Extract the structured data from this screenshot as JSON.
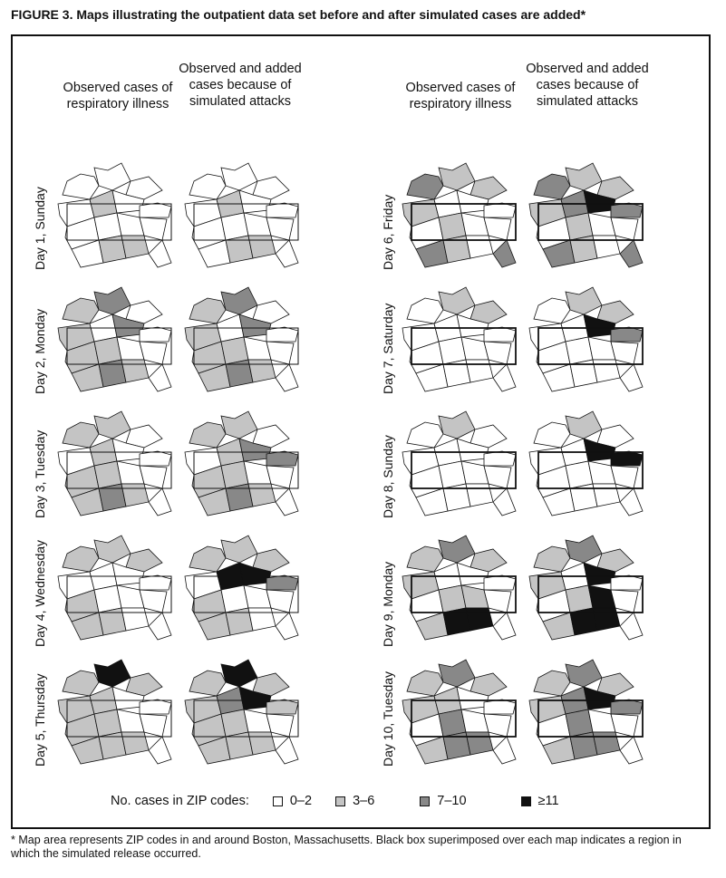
{
  "title": "FIGURE 3. Maps illustrating the outpatient data set before and after simulated cases are added*",
  "columns": {
    "observed": "Observed cases of respiratory illness",
    "added": "Observed and added cases because of simulated attacks"
  },
  "legend": {
    "label": "No. cases in ZIP codes:",
    "items": [
      {
        "label": "0–2",
        "color": "#ffffff"
      },
      {
        "label": "3–6",
        "color": "#c4c4c4"
      },
      {
        "label": "7–10",
        "color": "#888888"
      },
      {
        "label": "≥11",
        "color": "#111111"
      }
    ]
  },
  "footnote": "* Map area represents ZIP codes in and around Boston, Massachusetts. Black box superimposed over each map indicates a region in which the simulated release occurred.",
  "days": [
    {
      "label": "Day 1, Sunday",
      "observed": {
        "4": 1,
        "12": 1,
        "13": 1
      },
      "added": {
        "4": 1,
        "12": 1,
        "13": 1
      }
    },
    {
      "label": "Day 2, Monday",
      "observed": {
        "0": 2,
        "1": 1,
        "3": 1,
        "5": 2,
        "7": 1,
        "8": 1,
        "12": 2,
        "13": 1,
        "11": 1
      },
      "added": {
        "0": 2,
        "1": 1,
        "3": 1,
        "5": 2,
        "7": 1,
        "8": 1,
        "12": 2,
        "13": 1,
        "11": 1
      }
    },
    {
      "label": "Day 3, Tuesday",
      "observed": {
        "0": 1,
        "1": 1,
        "4": 1,
        "7": 1,
        "8": 1,
        "12": 2,
        "11": 1,
        "13": 1
      },
      "added": {
        "0": 1,
        "1": 1,
        "4": 1,
        "6": 2,
        "5": 2,
        "7": 1,
        "8": 1,
        "12": 2,
        "11": 1,
        "13": 1
      }
    },
    {
      "label": "Day 4, Wednesday",
      "observed": {
        "0": 1,
        "1": 1,
        "2": 1,
        "7": 1,
        "11": 1,
        "12": 1
      },
      "added": {
        "0": 1,
        "1": 1,
        "2": 1,
        "4": 3,
        "5": 3,
        "6": 2,
        "7": 1,
        "11": 1,
        "12": 1
      }
    },
    {
      "label": "Day 5, Thursday",
      "observed": {
        "0": 3,
        "1": 1,
        "2": 1,
        "3": 1,
        "4": 1,
        "7": 1,
        "8": 1,
        "11": 1,
        "12": 1,
        "13": 1
      },
      "added": {
        "0": 3,
        "1": 1,
        "2": 1,
        "3": 1,
        "4": 2,
        "5": 3,
        "6": 1,
        "7": 1,
        "8": 1,
        "11": 1,
        "12": 1,
        "13": 1
      }
    },
    {
      "label": "Day 6, Friday",
      "observed": {
        "0": 1,
        "1": 2,
        "2": 1,
        "3": 1,
        "8": 1,
        "11": 2,
        "12": 1,
        "14": 2
      },
      "added": {
        "0": 1,
        "1": 2,
        "2": 1,
        "3": 1,
        "4": 2,
        "5": 3,
        "6": 2,
        "8": 1,
        "11": 2,
        "12": 1,
        "14": 2
      }
    },
    {
      "label": "Day 7, Saturday",
      "observed": {
        "0": 1,
        "2": 1
      },
      "added": {
        "0": 1,
        "2": 1,
        "5": 3,
        "6": 2
      }
    },
    {
      "label": "Day 8, Sunday",
      "observed": {
        "0": 1
      },
      "added": {
        "0": 1,
        "5": 3,
        "6": 3
      }
    },
    {
      "label": "Day 9, Monday",
      "observed": {
        "0": 2,
        "1": 1,
        "2": 1,
        "3": 1,
        "8": 1,
        "9": 1,
        "12": 3,
        "13": 3,
        "11": 1
      },
      "added": {
        "0": 2,
        "1": 1,
        "2": 1,
        "3": 1,
        "5": 3,
        "8": 1,
        "9": 3,
        "12": 3,
        "13": 3,
        "11": 1
      }
    },
    {
      "label": "Day 10, Tuesday",
      "observed": {
        "0": 2,
        "1": 1,
        "2": 1,
        "3": 1,
        "4": 1,
        "8": 2,
        "12": 2,
        "13": 2,
        "11": 1
      },
      "added": {
        "0": 2,
        "1": 1,
        "2": 1,
        "3": 1,
        "4": 2,
        "5": 3,
        "6": 2,
        "8": 2,
        "12": 2,
        "13": 2,
        "11": 1
      }
    }
  ]
}
